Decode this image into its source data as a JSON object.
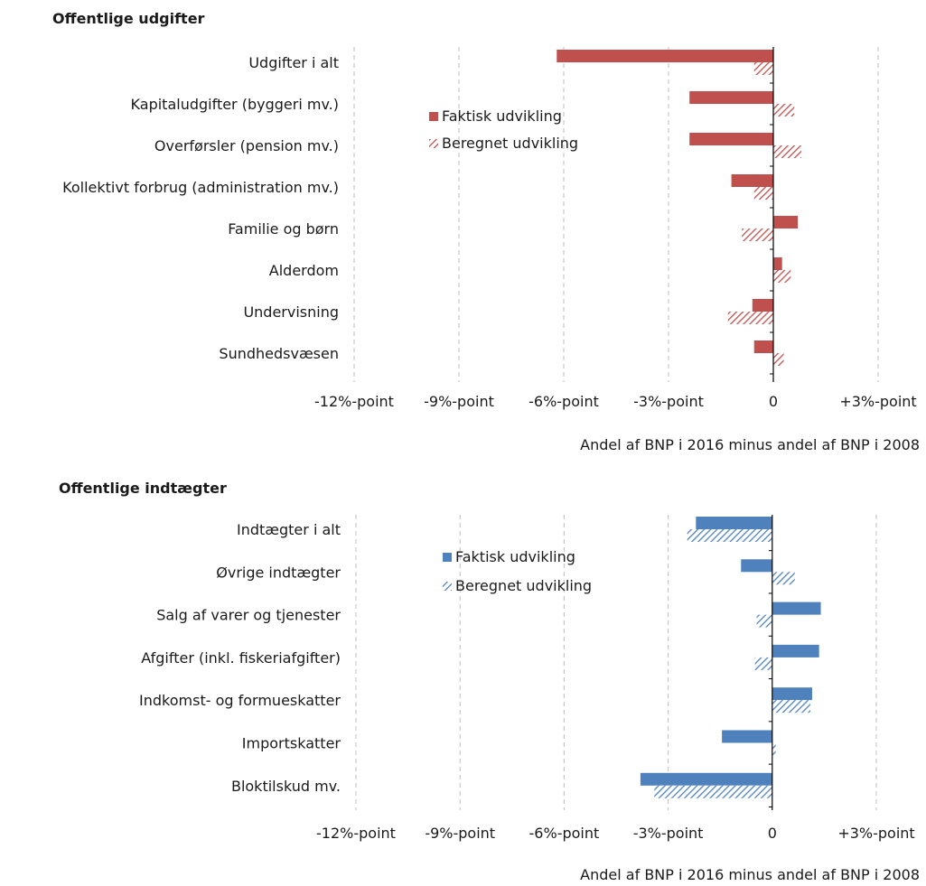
{
  "chart_data": [
    {
      "type": "bar",
      "orientation": "horizontal",
      "title": "Offentlige udgifter",
      "xlabel": "Andel af BNP i 2016 minus andel af BNP i 2008",
      "xlim": [
        -12,
        3
      ],
      "xticks": [
        -12,
        -9,
        -6,
        -3,
        0,
        3
      ],
      "xtick_labels": [
        "-12%-point",
        "-9%-point",
        "-6%-point",
        "-3%-point",
        "0",
        "+3%-point"
      ],
      "grid": "vertical dashed",
      "legend_position": "center",
      "categories": [
        "Udgifter i alt",
        "Kapitaludgifter (byggeri mv.)",
        "Overførsler (pension mv.)",
        "Kollektivt forbrug (administration mv.)",
        "Familie og børn",
        "Alderdom",
        "Undervisning",
        "Sundhedsvæsen"
      ],
      "series": [
        {
          "name": "Faktisk udvikling",
          "pattern": "solid",
          "color": "#c0504d",
          "values": [
            -6.2,
            -2.4,
            -2.4,
            -1.2,
            0.7,
            0.25,
            -0.6,
            -0.55
          ]
        },
        {
          "name": "Beregnet udvikling",
          "pattern": "hatched",
          "color": "#c0504d",
          "values": [
            -0.55,
            0.6,
            0.8,
            -0.55,
            -0.9,
            0.5,
            -1.3,
            0.3
          ]
        }
      ]
    },
    {
      "type": "bar",
      "orientation": "horizontal",
      "title": "Offentlige indtægter",
      "xlabel": "Andel af BNP i 2016 minus andel af BNP i 2008",
      "xlim": [
        -12,
        3
      ],
      "xticks": [
        -12,
        -9,
        -6,
        -3,
        0,
        3
      ],
      "xtick_labels": [
        "-12%-point",
        "-9%-point",
        "-6%-point",
        "-3%-point",
        "0",
        "+3%-point"
      ],
      "grid": "vertical dashed",
      "legend_position": "center",
      "categories": [
        "Indtægter i alt",
        "Øvrige indtægter",
        "Salg af varer og tjenester",
        "Afgifter (inkl. fiskeriafgifter)",
        "Indkomst- og formueskatter",
        "Importskatter",
        "Bloktilskud mv."
      ],
      "series": [
        {
          "name": "Faktisk udvikling",
          "pattern": "solid",
          "color": "#4f81bd",
          "values": [
            -2.2,
            -0.9,
            1.4,
            1.35,
            1.15,
            -1.45,
            -3.8
          ]
        },
        {
          "name": "Beregnet udvikling",
          "pattern": "hatched",
          "color": "#4f81bd",
          "values": [
            -2.45,
            0.65,
            -0.45,
            -0.5,
            1.1,
            0.1,
            -3.4
          ]
        }
      ]
    }
  ]
}
